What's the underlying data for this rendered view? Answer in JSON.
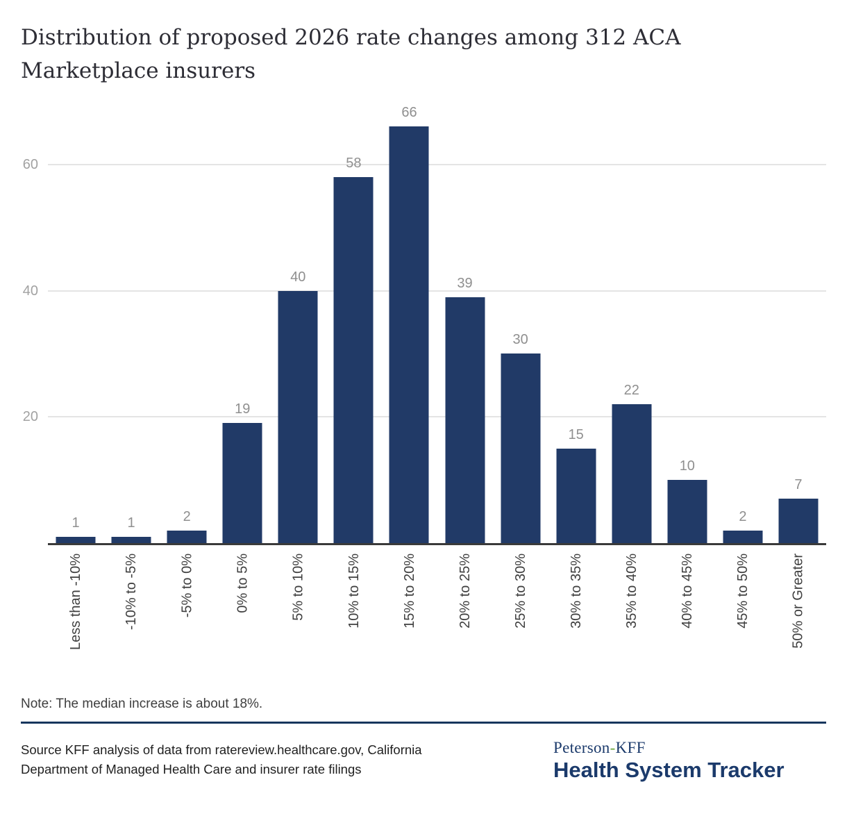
{
  "chart_data": {
    "type": "bar",
    "title": "Distribution of proposed 2026 rate changes among 312 ACA Marketplace insurers",
    "categories": [
      "Less than -10%",
      "-10% to -5%",
      "-5% to 0%",
      "0% to 5%",
      "5% to 10%",
      "10% to 15%",
      "15% to 20%",
      "20% to 25%",
      "25% to 30%",
      "30% to 35%",
      "35% to 40%",
      "40% to 45%",
      "45% to 50%",
      "50% or Greater"
    ],
    "values": [
      1,
      1,
      2,
      19,
      40,
      58,
      66,
      39,
      30,
      15,
      22,
      10,
      2,
      7
    ],
    "xlabel": "",
    "ylabel": "",
    "y_ticks": [
      20,
      40,
      60
    ],
    "ylim": [
      0,
      69
    ],
    "grid": true,
    "legend": false,
    "bar_color": "#213a67",
    "gridline_color": "#e4e4e4",
    "axis_line_color": "#3a3a3a",
    "value_label_color": "#8f8f8f",
    "tick_label_color": "#3f3f3f"
  },
  "note": {
    "text": "Note: The median increase is about 18%."
  },
  "source": {
    "text": "Source KFF analysis of data from ratereview.healthcare.gov, California Department of Managed Health Care and insurer rate filings"
  },
  "branding": {
    "peterson": "Peterson",
    "hyphen": "-",
    "kff": "KFF",
    "title": "Health System Tracker",
    "navy": "#1b3a6b",
    "hyphen_green": "#6aa43c"
  }
}
